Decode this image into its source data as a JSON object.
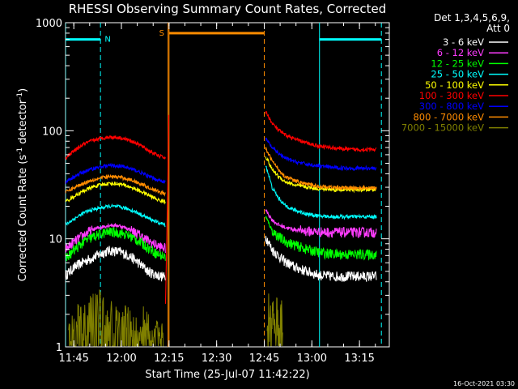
{
  "chart_data": {
    "type": "line",
    "title": "RHESSI Observing Summary Count Rates, Corrected",
    "xlabel": "Start Time (25-Jul-07 11:42:22)",
    "ylabel_main": "Corrected Count Rate (s",
    "ylabel_sup1": "-1",
    "ylabel_mid": " detector",
    "ylabel_sup2": "-1",
    "ylabel_end": ")",
    "x_unit": "minutes after 11:42:22",
    "xlim": [
      0,
      102
    ],
    "ylim": [
      1,
      1000
    ],
    "yscale": "log",
    "xtick_labels": [
      {
        "label": "11:45",
        "x": 2.6
      },
      {
        "label": "12:00",
        "x": 17.6
      },
      {
        "label": "12:15",
        "x": 32.6
      },
      {
        "label": "12:30",
        "x": 47.6
      },
      {
        "label": "12:45",
        "x": 62.6
      },
      {
        "label": "13:00",
        "x": 77.6
      },
      {
        "label": "13:15",
        "x": 92.6
      }
    ],
    "ytick_labels": [
      {
        "label": "1",
        "y": 1
      },
      {
        "label": "10",
        "y": 10
      },
      {
        "label": "100",
        "y": 100
      },
      {
        "label": "1000",
        "y": 1000
      }
    ],
    "legend": {
      "header": [
        "Det 1,3,4,5,6,9,",
        "Att 0"
      ],
      "placement": "right"
    },
    "series": [
      {
        "name": "3 - 6 keV",
        "color": "#ffffff",
        "segments": [
          {
            "x": [
              0,
              3,
              6,
              9,
              12,
              14,
              17,
              20,
              23,
              26,
              29,
              31.5
            ],
            "y": [
              4.6,
              5.5,
              6.2,
              6.8,
              7.5,
              7.8,
              7.6,
              7.0,
              6.0,
              5.0,
              4.6,
              4.4
            ]
          },
          {
            "x": [
              63,
              65,
              67,
              69,
              72,
              76,
              80,
              85,
              90,
              95,
              98
            ],
            "y": [
              10.5,
              8.0,
              7.0,
              6.2,
              5.5,
              5.0,
              4.6,
              4.5,
              4.5,
              4.5,
              4.5
            ]
          }
        ]
      },
      {
        "name": "6 - 12 keV",
        "color": "#ff3cff",
        "segments": [
          {
            "x": [
              0,
              3,
              6,
              9,
              12,
              14,
              17,
              20,
              23,
              26,
              29,
              31.5
            ],
            "y": [
              8.0,
              9.5,
              11.0,
              12.3,
              13.0,
              13.4,
              13.2,
              12.3,
              11.0,
              9.6,
              8.6,
              8.2
            ]
          },
          {
            "x": [
              63,
              65,
              67,
              69,
              72,
              76,
              80,
              85,
              90,
              95,
              98
            ],
            "y": [
              18.5,
              15.0,
              13.5,
              12.8,
              12.2,
              11.8,
              11.6,
              11.5,
              11.5,
              11.5,
              11.5
            ]
          }
        ]
      },
      {
        "name": "12 - 25 keV",
        "color": "#00ff00",
        "segments": [
          {
            "x": [
              0,
              3,
              6,
              9,
              12,
              14,
              17,
              20,
              23,
              26,
              29,
              31.5
            ],
            "y": [
              6.5,
              8.0,
              9.5,
              10.5,
              11.3,
              11.6,
              11.4,
              10.7,
              9.5,
              8.3,
              7.2,
              6.8
            ]
          },
          {
            "x": [
              63,
              65,
              67,
              69,
              72,
              76,
              80,
              85,
              90,
              95,
              98
            ],
            "y": [
              16.0,
              12.0,
              10.5,
              9.5,
              8.8,
              8.0,
              7.5,
              7.2,
              7.2,
              7.2,
              7.2
            ]
          }
        ]
      },
      {
        "name": "25 - 50 keV",
        "color": "#00ffff",
        "segments": [
          {
            "x": [
              0,
              3,
              6,
              9,
              12,
              14,
              17,
              20,
              23,
              26,
              29,
              31.5
            ],
            "y": [
              13.5,
              15.5,
              17.5,
              18.8,
              19.6,
              20.0,
              19.7,
              18.8,
              17.2,
              15.5,
              14.2,
              13.4
            ]
          },
          {
            "x": [
              63,
              65,
              67,
              69,
              72,
              76,
              80,
              85,
              90,
              95,
              98
            ],
            "y": [
              48.0,
              30.0,
              24.0,
              20.5,
              18.5,
              17.0,
              16.2,
              16.0,
              16.0,
              16.0,
              16.0
            ]
          }
        ]
      },
      {
        "name": "50 - 100 keV",
        "color": "#ffff00",
        "segments": [
          {
            "x": [
              0,
              3,
              6,
              9,
              12,
              14,
              17,
              20,
              23,
              26,
              29,
              31.5
            ],
            "y": [
              22.0,
              25.0,
              28.0,
              30.5,
              32.0,
              32.6,
              32.2,
              30.5,
              28.0,
              25.5,
              23.0,
              22.0
            ]
          },
          {
            "x": [
              63,
              65,
              67,
              69,
              72,
              76,
              80,
              85,
              90,
              95,
              98
            ],
            "y": [
              58.0,
              44.0,
              38.0,
              34.0,
              31.5,
              30.0,
              29.0,
              28.5,
              28.5,
              28.5,
              28.5
            ]
          }
        ]
      },
      {
        "name": "100 - 300 keV",
        "color": "#ff0000",
        "segments": [
          {
            "x": [
              0,
              3,
              6,
              9,
              12,
              14,
              17,
              20,
              23,
              26,
              29,
              31.5
            ],
            "y": [
              56.0,
              66.0,
              76.0,
              82.0,
              86.0,
              87.5,
              86.5,
              82.0,
              75.0,
              66.0,
              59.0,
              56.0
            ]
          },
          {
            "x": [
              63,
              65,
              67,
              69,
              72,
              76,
              80,
              85,
              90,
              95,
              98
            ],
            "y": [
              150.0,
              118.0,
              102.0,
              92.0,
              84.0,
              77.0,
              72.0,
              69.0,
              67.0,
              67.0,
              67.0
            ]
          }
        ]
      },
      {
        "name": "300 - 800 keV",
        "color": "#0000ff",
        "segments": [
          {
            "x": [
              0,
              3,
              6,
              9,
              12,
              14,
              17,
              20,
              23,
              26,
              29,
              31.5
            ],
            "y": [
              33.0,
              38.0,
              42.0,
              45.0,
              47.0,
              47.8,
              47.3,
              45.0,
              42.0,
              38.0,
              35.0,
              33.5
            ]
          },
          {
            "x": [
              63,
              65,
              67,
              69,
              72,
              76,
              80,
              85,
              90,
              95,
              98
            ],
            "y": [
              85.0,
              70.0,
              62.0,
              56.0,
              52.0,
              49.0,
              47.0,
              45.5,
              45.0,
              45.0,
              45.0
            ]
          }
        ]
      },
      {
        "name": "800 - 7000 keV",
        "color": "#ff8c00",
        "segments": [
          {
            "x": [
              0,
              3,
              6,
              9,
              12,
              14,
              17,
              20,
              23,
              26,
              29,
              31.5
            ],
            "y": [
              27.0,
              30.0,
              33.0,
              35.5,
              37.0,
              37.6,
              37.2,
              35.5,
              33.0,
              30.0,
              27.5,
              26.0
            ]
          },
          {
            "x": [
              63,
              65,
              67,
              69,
              72,
              76,
              80,
              85,
              90,
              95,
              98
            ],
            "y": [
              68.0,
              53.0,
              44.0,
              38.0,
              34.5,
              32.0,
              30.5,
              29.8,
              29.5,
              29.5,
              29.5
            ]
          }
        ]
      },
      {
        "name": "7000 - 15000 keV",
        "color": "#808000",
        "segments": [
          {
            "x": [
              1,
              3,
              5,
              7,
              9,
              11,
              13,
              15,
              17,
              19,
              21,
              23,
              25,
              27,
              29,
              31
            ],
            "y": [
              1.6,
              2.0,
              2.4,
              2.8,
              2.6,
              3.0,
              2.0,
              2.6,
              1.8,
              2.2,
              1.9,
              1.6,
              2.4,
              1.3,
              1.7,
              1.5
            ]
          },
          {
            "x": [
              63.5,
              64.5,
              65.5,
              66.5,
              67.5,
              68.5
            ],
            "y": [
              2.4,
              3.0,
              2.2,
              2.8,
              2.0,
              2.6
            ]
          }
        ]
      }
    ],
    "flare_spike": {
      "x": [
        31.5,
        32.2,
        32.5
      ],
      "y": [
        2.5,
        30,
        140
      ]
    },
    "flags": [
      {
        "label": "N",
        "color": "#00ffff",
        "bar_from": 0,
        "bar_to": 11,
        "level": 700
      },
      {
        "label": "S",
        "color": "#ff8c00",
        "bar_from": 32.6,
        "bar_to": 62.6,
        "level": 800
      },
      {
        "label": "",
        "color": "#00ffff",
        "bar_from": 80,
        "bar_to": 99.5,
        "level": 700
      }
    ],
    "vlines": [
      {
        "x": 0,
        "color": "#00ffff",
        "dash": false
      },
      {
        "x": 11,
        "color": "#00ffff",
        "dash": true
      },
      {
        "x": 32.3,
        "color": "#ff8c00",
        "dash": false
      },
      {
        "x": 32.6,
        "color": "#ff8c00",
        "dash": false
      },
      {
        "x": 62.6,
        "color": "#ff8c00",
        "dash": true
      },
      {
        "x": 80,
        "color": "#00ffff",
        "dash": false
      },
      {
        "x": 99.5,
        "color": "#00ffff",
        "dash": true
      }
    ]
  },
  "footer_timestamp": "16-Oct-2021 03:30"
}
